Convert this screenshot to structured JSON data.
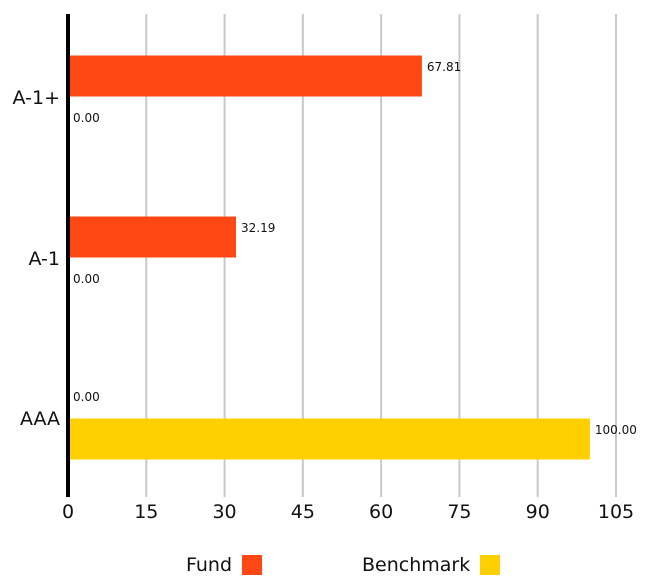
{
  "chart_data": {
    "type": "bar",
    "orientation": "horizontal",
    "categories": [
      "A-1+",
      "A-1",
      "AAA"
    ],
    "series": [
      {
        "name": "Fund",
        "values": [
          67.81,
          32.19,
          0.0
        ],
        "labels": [
          "67.81",
          "32.19",
          "0.00"
        ],
        "color": "#ff4713"
      },
      {
        "name": "Benchmark",
        "values": [
          0.0,
          0.0,
          100.0
        ],
        "labels": [
          "0.00",
          "0.00",
          "100.00"
        ],
        "color": "#ffcf00"
      }
    ],
    "xlim": [
      0,
      105
    ],
    "xticks": [
      "0",
      "15",
      "30",
      "45",
      "60",
      "75",
      "90",
      "105"
    ],
    "grid": true,
    "legend_position": "bottom",
    "title": "",
    "xlabel": "",
    "ylabel": ""
  },
  "legend": {
    "fund_label": "Fund",
    "benchmark_label": "Benchmark"
  }
}
